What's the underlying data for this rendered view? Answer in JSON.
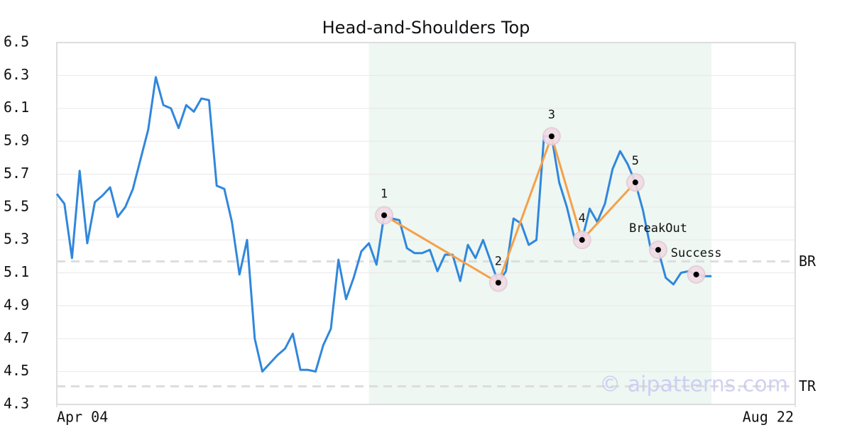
{
  "chart_data": {
    "type": "line",
    "title": "Head-and-Shoulders Top",
    "color": "#3087dc",
    "values": [
      5.58,
      5.52,
      5.19,
      5.72,
      5.28,
      5.53,
      5.57,
      5.62,
      5.44,
      5.5,
      5.61,
      5.79,
      5.97,
      6.29,
      6.12,
      6.1,
      5.98,
      6.12,
      6.08,
      6.16,
      6.15,
      5.63,
      5.61,
      5.41,
      5.09,
      5.3,
      4.7,
      4.5,
      4.55,
      4.6,
      4.64,
      4.73,
      4.51,
      4.51,
      4.5,
      4.66,
      4.76,
      5.18,
      4.94,
      5.07,
      5.23,
      5.28,
      5.15,
      5.45,
      5.43,
      5.42,
      5.25,
      5.22,
      5.22,
      5.24,
      5.11,
      5.21,
      5.21,
      5.05,
      5.27,
      5.19,
      5.3,
      5.17,
      5.04,
      5.11,
      5.43,
      5.4,
      5.27,
      5.3,
      5.93,
      5.93,
      5.65,
      5.5,
      5.31,
      5.3,
      5.49,
      5.41,
      5.52,
      5.73,
      5.84,
      5.76,
      5.65,
      5.48,
      5.25,
      5.24,
      5.07,
      5.03,
      5.1,
      5.11,
      5.09,
      5.08,
      5.08
    ],
    "xlim": [
      0,
      97
    ],
    "xticks": [
      {
        "value": 0,
        "label": "Apr 04"
      },
      {
        "value": 97,
        "label": "Aug 22"
      }
    ],
    "ylim": [
      4.3,
      6.5
    ],
    "yticks": [
      4.3,
      4.5,
      4.7,
      4.9,
      5.1,
      5.3,
      5.5,
      5.7,
      5.9,
      6.1,
      6.3,
      6.5
    ],
    "grid": true,
    "highlight": {
      "from": 41,
      "to": 86,
      "color": "#eef7f2"
    },
    "pattern_color": "#f5a04a",
    "pattern": [
      {
        "label": "1",
        "x": 43,
        "y": 5.45
      },
      {
        "label": "2",
        "x": 58,
        "y": 5.04
      },
      {
        "label": "3",
        "x": 65,
        "y": 5.93
      },
      {
        "label": "4",
        "x": 69,
        "y": 5.3
      },
      {
        "label": "5",
        "x": 76,
        "y": 5.65
      }
    ],
    "signals": [
      {
        "label": "BreakOut",
        "x": 79,
        "y": 5.24
      },
      {
        "label": "Success",
        "x": 84,
        "y": 5.09
      }
    ],
    "levels": [
      {
        "label": "BR",
        "value": 5.17
      },
      {
        "label": "TR",
        "value": 4.41
      }
    ],
    "watermark": "© aipatterns.com"
  }
}
